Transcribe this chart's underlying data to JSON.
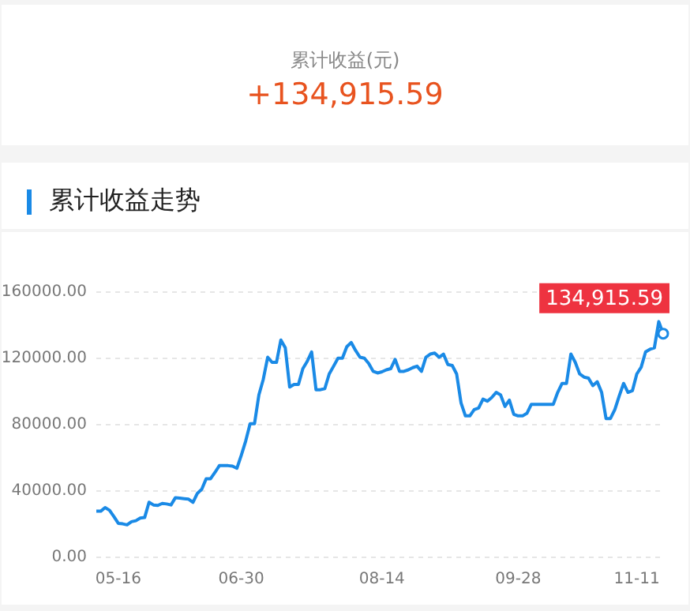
{
  "chart_data": {
    "type": "line",
    "title": "累计收益走势",
    "annotations": [
      "累计收益(元)",
      "+134,915.59",
      "134,915.59"
    ],
    "categories": [
      null,
      null,
      null,
      null,
      null,
      "05-16",
      null,
      null,
      null,
      null,
      null,
      null,
      null,
      null,
      null,
      null,
      null,
      null,
      null,
      null,
      null,
      null,
      null,
      null,
      null,
      null,
      null,
      null,
      null,
      null,
      null,
      null,
      null,
      "06-30",
      null,
      null,
      null,
      null,
      null,
      null,
      null,
      null,
      null,
      null,
      null,
      null,
      null,
      null,
      null,
      null,
      null,
      null,
      null,
      null,
      null,
      null,
      null,
      null,
      null,
      null,
      null,
      null,
      null,
      null,
      null,
      "08-14",
      null,
      null,
      null,
      null,
      null,
      null,
      null,
      null,
      null,
      null,
      null,
      null,
      null,
      null,
      null,
      null,
      null,
      null,
      null,
      null,
      null,
      null,
      null,
      null,
      null,
      null,
      null,
      null,
      null,
      null,
      "09-28",
      null,
      null,
      null,
      null,
      null,
      null,
      null,
      null,
      null,
      null,
      null,
      null,
      null,
      null,
      null,
      null,
      null,
      null,
      null,
      null,
      null,
      null,
      null,
      null,
      null,
      null,
      "11-11",
      null,
      null,
      null,
      null,
      null,
      null
    ],
    "series": [
      {
        "color": "#1a8ae6",
        "values": [
          27800,
          27800,
          30000,
          28400,
          24600,
          20500,
          20200,
          19600,
          21500,
          22100,
          23700,
          24000,
          33200,
          31600,
          31300,
          32500,
          32200,
          31600,
          36000,
          35700,
          35400,
          35100,
          33200,
          38600,
          41100,
          47400,
          47400,
          51200,
          55300,
          55300,
          55300,
          55000,
          53700,
          61600,
          70200,
          80600,
          80600,
          98000,
          107400,
          120700,
          117600,
          117600,
          131100,
          126400,
          102700,
          104300,
          104300,
          113800,
          118200,
          123900,
          101100,
          101100,
          101800,
          110600,
          115300,
          120100,
          120100,
          127000,
          129600,
          124800,
          120700,
          120100,
          116900,
          112200,
          111200,
          111900,
          113100,
          113800,
          119400,
          112200,
          112200,
          113100,
          114400,
          115300,
          112200,
          120700,
          122600,
          123200,
          120700,
          122600,
          116300,
          115700,
          110600,
          93200,
          85300,
          85300,
          89100,
          90100,
          95400,
          94200,
          96400,
          99500,
          98000,
          91000,
          94800,
          86300,
          85300,
          85300,
          86900,
          92300,
          92300,
          92300,
          92300,
          92300,
          92300,
          99500,
          104900,
          104900,
          122600,
          117600,
          110600,
          108700,
          108100,
          103600,
          105900,
          99500,
          83700,
          83700,
          89100,
          97300,
          104900,
          99500,
          100500,
          110600,
          114700,
          123900,
          125500,
          126400,
          142200,
          134915.59
        ]
      }
    ],
    "ylim": [
      0,
      160000
    ],
    "yticks": [
      {
        "value": 0,
        "label": "0.00"
      },
      {
        "value": 40000,
        "label": "40000.00"
      },
      {
        "value": 80000,
        "label": "80000.00"
      },
      {
        "value": 120000,
        "label": "120000.00"
      },
      {
        "value": 160000,
        "label": "160000.00"
      }
    ],
    "grid": "y",
    "marker": "none"
  }
}
